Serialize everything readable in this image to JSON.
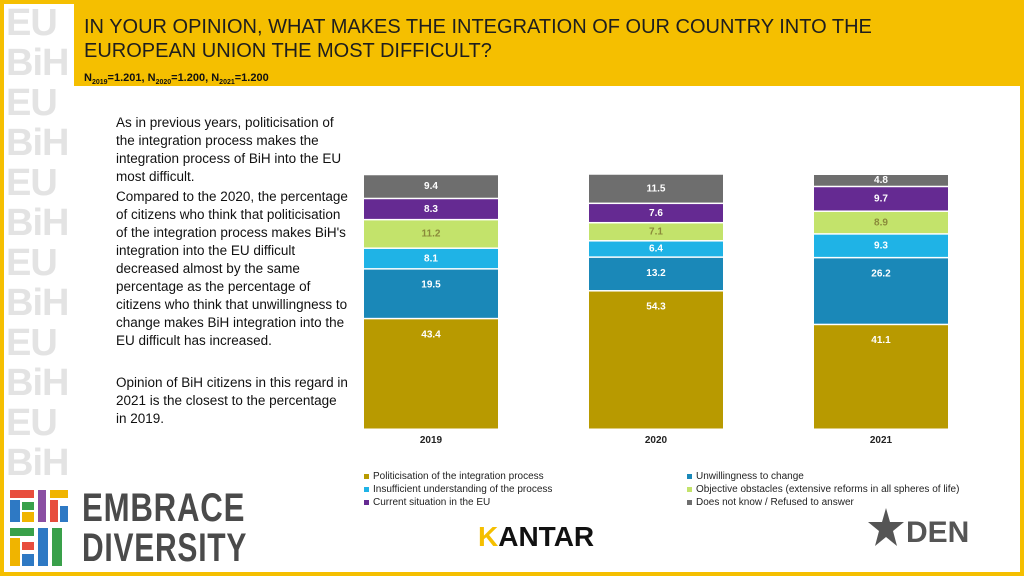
{
  "header": {
    "title": "IN YOUR OPINION, WHAT MAKES THE INTEGRATION OF OUR COUNTRY INTO THE EUROPEAN UNION THE MOST DIFFICULT?",
    "n_2019_label": "2019",
    "n_2019_value": "=1.201, ",
    "n_2020_label": "2020",
    "n_2020_value": "=1.200, ",
    "n_2021_label": "2021",
    "n_2021_value": "=1.200",
    "n_prefix": "N"
  },
  "commentary": {
    "p1": "As in previous years, politicisation of the integration process makes the integration process of BiH into the EU most difficult.",
    "p2": "Compared to the 2020, the percentage of citizens who think that politicisation of the integration process makes BiH's integration into the EU difficult decreased almost by the same percentage as the percentage of citizens who think that unwillingness to change makes BiH integration into the EU difficult has increased.",
    "p3": "Opinion of BiH citizens in this regard in 2021 is the closest to the percentage in 2019."
  },
  "chart_data": {
    "type": "bar",
    "stacked": true,
    "categories": [
      "2019",
      "2020",
      "2021"
    ],
    "series": [
      {
        "name": "Politicisation of the integration process",
        "color": "#b89a00",
        "values": [
          43.4,
          54.3,
          41.1
        ]
      },
      {
        "name": "Unwillingness to change",
        "color": "#1a88b8",
        "values": [
          19.5,
          13.2,
          26.2
        ]
      },
      {
        "name": "Insufficient understanding of the process",
        "color": "#1fb3e6",
        "values": [
          8.1,
          6.4,
          9.3
        ]
      },
      {
        "name": "Objective obstacles (extensive reforms in all spheres of life)",
        "color": "#c3e36b",
        "values": [
          11.2,
          7.1,
          8.9
        ]
      },
      {
        "name": "Current situation in the EU",
        "color": "#652a92",
        "values": [
          8.3,
          7.6,
          9.7
        ]
      },
      {
        "name": "Does not know / Refused to answer",
        "color": "#6e6e6e",
        "values": [
          9.4,
          11.5,
          4.8
        ]
      }
    ],
    "ylim": [
      0,
      100
    ],
    "title": "",
    "xlabel": "",
    "ylabel": ""
  },
  "legend": {
    "items": [
      {
        "label": "Politicisation of the integration process",
        "color": "#b89a00"
      },
      {
        "label": "Unwillingness to change",
        "color": "#1a88b8"
      },
      {
        "label": "Insufficient understanding of the process",
        "color": "#1fb3e6"
      },
      {
        "label": "Objective obstacles (extensive reforms in all spheres of life)",
        "color": "#c3e36b"
      },
      {
        "label": "Current situation in the EU",
        "color": "#652a92"
      },
      {
        "label": "Does not know / Refused to answer",
        "color": "#6e6e6e"
      }
    ]
  },
  "brand": {
    "line1": "EMBRACE",
    "line2": "DIVERSITY",
    "kantar_k": "K",
    "kantar_rest": "ANTAR",
    "den": "DEN"
  },
  "colors": {
    "accent": "#f5bf00"
  }
}
